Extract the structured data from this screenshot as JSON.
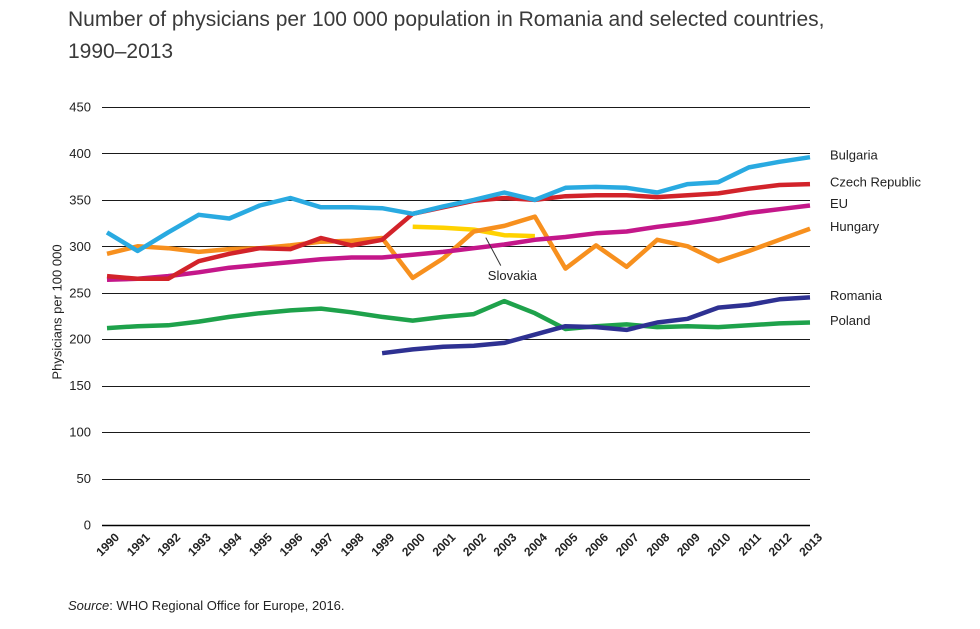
{
  "chart_data": {
    "type": "line",
    "title": "Number of physicians per 100 000 population in Romania and selected countries, 1990–2013",
    "xlabel": "",
    "ylabel": "Physicians per 100 000",
    "ylim": [
      0,
      450
    ],
    "yticks": [
      0,
      50,
      100,
      150,
      200,
      250,
      300,
      350,
      400,
      450
    ],
    "grid": "horizontal",
    "legend": "right, at line ends",
    "x": [
      1990,
      1991,
      1992,
      1993,
      1994,
      1995,
      1996,
      1997,
      1998,
      1999,
      2000,
      2001,
      2002,
      2003,
      2004,
      2005,
      2006,
      2007,
      2008,
      2009,
      2010,
      2011,
      2012,
      2013
    ],
    "series": [
      {
        "name": "Bulgaria",
        "color": "#29aae1",
        "values": [
          315,
          295,
          315,
          334,
          330,
          344,
          352,
          342,
          342,
          341,
          335,
          343,
          350,
          358,
          350,
          363,
          364,
          363,
          358,
          367,
          369,
          385,
          391,
          396
        ]
      },
      {
        "name": "Czech Republic",
        "color": "#d2232a",
        "values": [
          268,
          265,
          265,
          284,
          292,
          298,
          297,
          309,
          301,
          307,
          335,
          342,
          349,
          352,
          350,
          354,
          355,
          355,
          353,
          355,
          357,
          362,
          366,
          367
        ]
      },
      {
        "name": "EU",
        "color": "#c4178a",
        "values": [
          264,
          265,
          268,
          272,
          277,
          280,
          283,
          286,
          288,
          288,
          291,
          294,
          298,
          302,
          307,
          310,
          314,
          316,
          321,
          325,
          330,
          336,
          340,
          344
        ]
      },
      {
        "name": "Hungary",
        "color": "#f7901e",
        "values": [
          292,
          300,
          298,
          294,
          297,
          298,
          301,
          305,
          306,
          309,
          266,
          287,
          316,
          322,
          332,
          276,
          301,
          278,
          307,
          300,
          284,
          295,
          307,
          319
        ]
      },
      {
        "name": "Slovakia",
        "color": "#ffd200",
        "values": [
          null,
          null,
          null,
          null,
          null,
          null,
          null,
          null,
          null,
          null,
          321,
          320,
          318,
          312,
          311,
          null,
          null,
          null,
          null,
          null,
          null,
          null,
          null,
          null
        ]
      },
      {
        "name": "Romania",
        "color": "#2e3192",
        "values": [
          null,
          null,
          null,
          null,
          null,
          null,
          null,
          null,
          null,
          185,
          189,
          192,
          193,
          196,
          205,
          214,
          213,
          210,
          218,
          222,
          234,
          237,
          243,
          245
        ]
      },
      {
        "name": "Poland",
        "color": "#1ea24b",
        "values": [
          212,
          214,
          215,
          219,
          224,
          228,
          231,
          233,
          229,
          224,
          220,
          224,
          227,
          241,
          228,
          211,
          214,
          216,
          213,
          214,
          213,
          215,
          217,
          218
        ]
      }
    ]
  },
  "source": {
    "label": "Source",
    "text": ": WHO Regional Office for Europe, 2016."
  }
}
